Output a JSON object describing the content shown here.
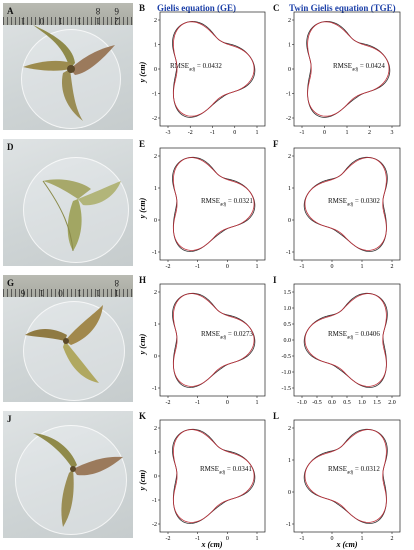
{
  "headers": {
    "ge": "Gielis equation (GE)",
    "tge": "Twin Gielis equation (TGE)"
  },
  "colors": {
    "fitted": "#c0303a",
    "observed": "#333333",
    "header": "#1b3fa8"
  },
  "axis_labels": {
    "y": "y (cm)",
    "x": "x (cm)"
  },
  "photos": [
    {
      "label": "A",
      "ruler_numbers": "2 1 1 1 0 1 6 8"
    },
    {
      "label": "D",
      "ruler_numbers": ""
    },
    {
      "label": "G",
      "ruler_numbers": "1 1 1 0 1 6 8"
    },
    {
      "label": "J",
      "ruler_numbers": ""
    }
  ],
  "panels": [
    {
      "label": "B",
      "rmse_prefix": "RMSE",
      "rmse_sub": "adj",
      "rmse_value": " = 0.0432",
      "xticks": [
        "-3",
        "-2",
        "-1",
        "0",
        "1"
      ],
      "yticks": [
        "2",
        "1",
        "0",
        "-1",
        "-2"
      ]
    },
    {
      "label": "C",
      "rmse_prefix": "RMSE",
      "rmse_sub": "adj",
      "rmse_value": " = 0.0424",
      "xticks": [
        "-1",
        "0",
        "1",
        "2",
        "3"
      ],
      "yticks": [
        "2",
        "1",
        "0",
        "-1",
        "-2"
      ]
    },
    {
      "label": "E",
      "rmse_prefix": "RMSE",
      "rmse_sub": "adj",
      "rmse_value": " = 0.0321",
      "xticks": [
        "-2",
        "-1",
        "0",
        "1"
      ],
      "yticks": [
        "2",
        "1",
        "0",
        "-1"
      ]
    },
    {
      "label": "F",
      "rmse_prefix": "RMSE",
      "rmse_sub": "adj",
      "rmse_value": " = 0.0302",
      "xticks": [
        "-1",
        "0",
        "1",
        "2"
      ],
      "yticks": [
        "2",
        "1",
        "0",
        "-1"
      ]
    },
    {
      "label": "H",
      "rmse_prefix": "RMSE",
      "rmse_sub": "adj",
      "rmse_value": " = 0.0273",
      "xticks": [
        "-2",
        "-1",
        "0",
        "1"
      ],
      "yticks": [
        "2",
        "1",
        "0",
        "-1"
      ]
    },
    {
      "label": "I",
      "rmse_prefix": "RMSE",
      "rmse_sub": "adj",
      "rmse_value": " = 0.0406",
      "xticks": [
        "-1.0",
        "-0.5",
        "0.0",
        "0.5",
        "1.0",
        "1.5",
        "2.0"
      ],
      "yticks": [
        "1.5",
        "1.0",
        "0.5",
        "0.0",
        "-0.5",
        "-1.0",
        "-1.5"
      ]
    },
    {
      "label": "K",
      "rmse_prefix": "RMSE",
      "rmse_sub": "adj",
      "rmse_value": " = 0.0341",
      "xticks": [
        "-2",
        "-1",
        "0",
        "1"
      ],
      "yticks": [
        "2",
        "1",
        "0",
        "-1",
        "-2"
      ]
    },
    {
      "label": "L",
      "rmse_prefix": "RMSE",
      "rmse_sub": "adj",
      "rmse_value": " = 0.0312",
      "xticks": [
        "-1",
        "0",
        "1",
        "2"
      ],
      "yticks": [
        "2",
        "1",
        "0",
        "-1"
      ]
    }
  ]
}
